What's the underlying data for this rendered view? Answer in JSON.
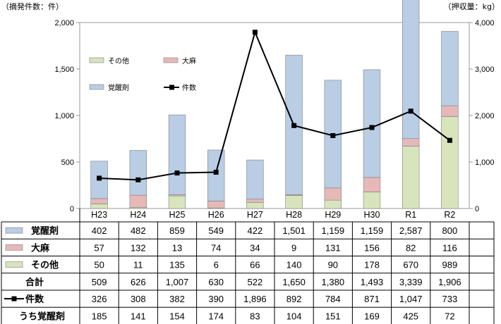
{
  "chart_data": {
    "type": "bar",
    "left_axis_title": "（摘発件数：件）",
    "right_axis_title": "（押収量：kg）",
    "categories": [
      "H23",
      "H24",
      "H25",
      "H26",
      "H27",
      "H28",
      "H29",
      "H30",
      "R1",
      "R2"
    ],
    "left_ylim": [
      0,
      2000
    ],
    "left_ticks": [
      "2,000",
      "1,500",
      "1,000",
      "500",
      "0"
    ],
    "right_ylim": [
      0,
      4000
    ],
    "right_ticks": [
      "4,000",
      "3,000",
      "2,000",
      "1,000",
      "0"
    ],
    "stack_series": [
      {
        "name": "その他",
        "color": "#d8e4bc",
        "values": [
          50,
          11,
          135,
          6,
          66,
          140,
          90,
          178,
          670,
          989
        ]
      },
      {
        "name": "大麻",
        "color": "#e6b9b8",
        "values": [
          57,
          132,
          13,
          74,
          34,
          9,
          131,
          156,
          82,
          116
        ]
      },
      {
        "name": "覚醒剤",
        "color": "#b9cde5",
        "values": [
          402,
          482,
          859,
          549,
          422,
          1501,
          1159,
          1159,
          2587,
          800
        ]
      }
    ],
    "line_series": {
      "name": "件数",
      "color": "#000000",
      "values": [
        326,
        308,
        382,
        390,
        1896,
        892,
        784,
        871,
        1047,
        733
      ]
    },
    "table": [
      {
        "label": "覚醒剤",
        "key": "stim",
        "values": [
          "402",
          "482",
          "859",
          "549",
          "422",
          "1,501",
          "1,159",
          "1,159",
          "2,587",
          "800"
        ]
      },
      {
        "label": "大麻",
        "key": "cannabis",
        "values": [
          "57",
          "132",
          "13",
          "74",
          "34",
          "9",
          "131",
          "156",
          "82",
          "116"
        ]
      },
      {
        "label": "その他",
        "key": "other",
        "values": [
          "50",
          "11",
          "135",
          "6",
          "66",
          "140",
          "90",
          "178",
          "670",
          "989"
        ]
      },
      {
        "label": "合計",
        "key": "total",
        "values": [
          "509",
          "626",
          "1,007",
          "630",
          "522",
          "1,650",
          "1,380",
          "1,493",
          "3,339",
          "1,906"
        ]
      },
      {
        "label": "件数",
        "key": "cases",
        "values": [
          "326",
          "308",
          "382",
          "390",
          "1,896",
          "892",
          "784",
          "871",
          "1,047",
          "733"
        ]
      },
      {
        "label": "うち覚醒剤",
        "key": "cases_stim",
        "values": [
          "185",
          "141",
          "154",
          "174",
          "83",
          "104",
          "151",
          "169",
          "425",
          "72"
        ]
      }
    ]
  }
}
